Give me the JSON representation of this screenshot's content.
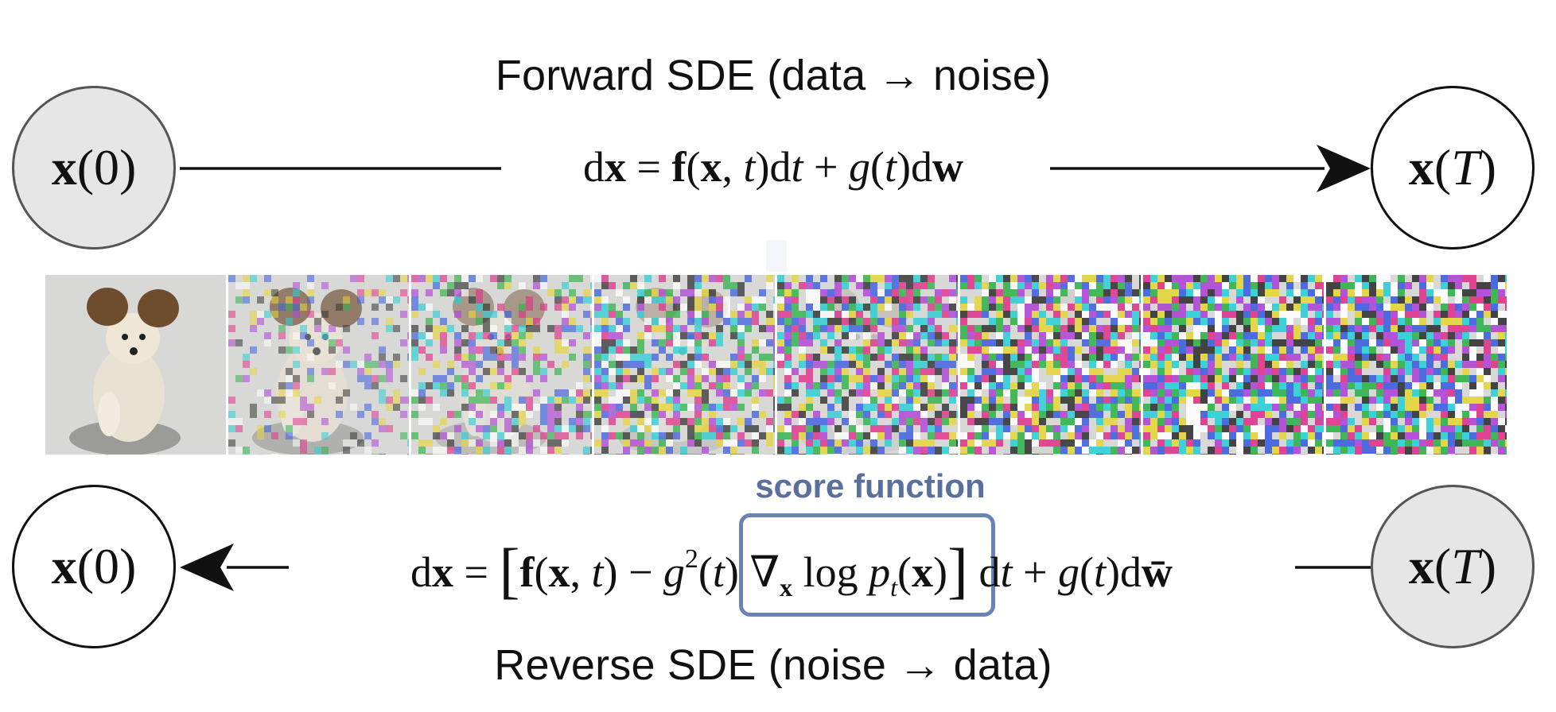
{
  "forward": {
    "caption": "Forward SDE (data → noise)",
    "start_node": "x(0)",
    "end_node": "x(T)"
  },
  "reverse": {
    "caption": "Reverse SDE (noise → data)",
    "start_node": "x(T)",
    "end_node": "x(0)"
  },
  "score_label": "score function",
  "strip": {
    "frames": 8,
    "noise_levels": [
      0.0,
      0.35,
      0.55,
      0.72,
      0.85,
      0.95,
      1.0,
      1.0
    ]
  },
  "colors": {
    "score": "#5a6f9b",
    "node_fill": "#e6e6e6"
  }
}
